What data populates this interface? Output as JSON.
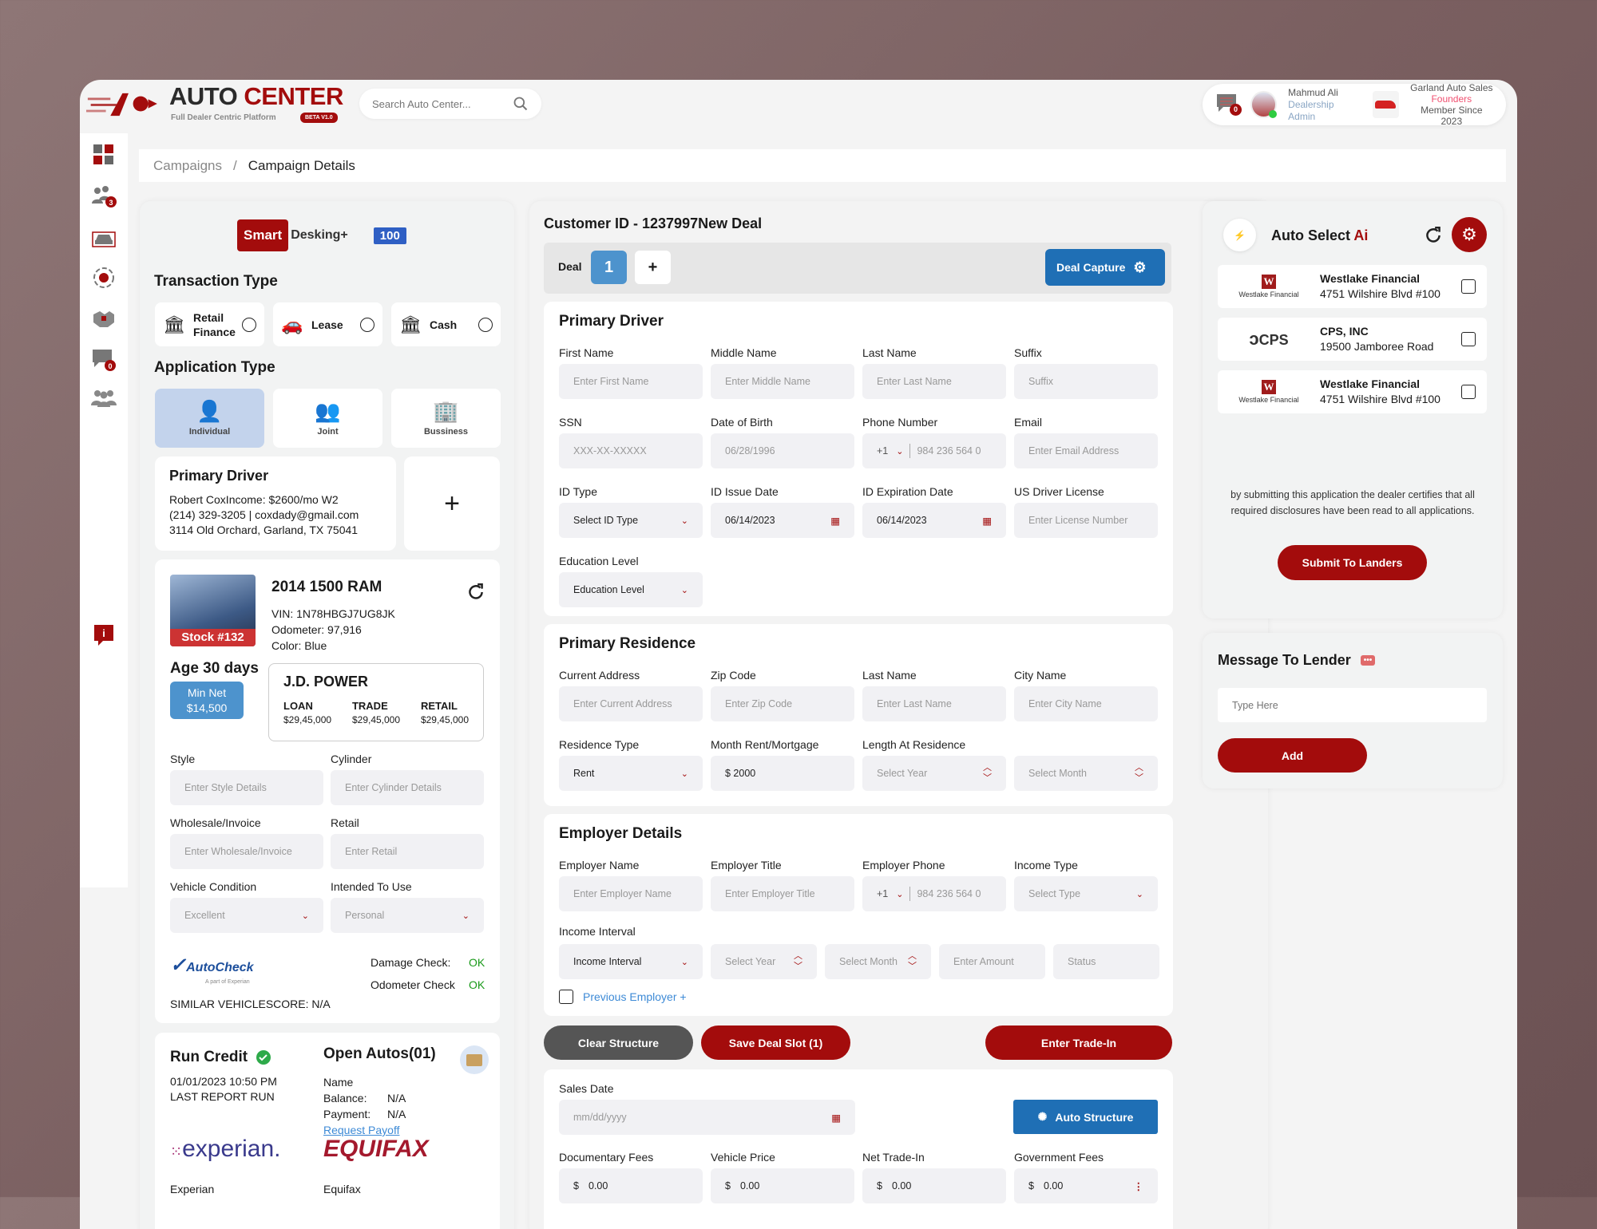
{
  "header": {
    "brand_a": "AUTO",
    "brand_b": "CENTER",
    "tagline": "Full Dealer Centric Platform",
    "beta": "BETA V1.0",
    "search_placeholder": "Search Auto Center...",
    "notifications": "0",
    "user_name": "Mahmud Ali",
    "user_role": "Dealership Admin",
    "dealer_name": "Garland Auto Sales",
    "dealer_tag": "Founders",
    "dealer_since": "Member Since 2023"
  },
  "sidebar": {
    "items": [
      {
        "icon": "dashboard-icon"
      },
      {
        "icon": "users-icon",
        "badge": "3"
      },
      {
        "icon": "car-icon"
      },
      {
        "icon": "target-icon"
      },
      {
        "icon": "handshake-icon"
      },
      {
        "icon": "messages-icon",
        "badge": "0"
      },
      {
        "icon": "team-icon"
      },
      {
        "icon": "info-icon"
      }
    ]
  },
  "breadcrumb": {
    "parent": "Campaigns",
    "sep": "/",
    "current": "Campaign Details"
  },
  "left": {
    "logo_smart": "Smart",
    "logo_desking": "Desking+",
    "logo_badge": "100",
    "transaction_title": "Transaction Type",
    "transactions": [
      {
        "label": "Retail Finance"
      },
      {
        "label": "Lease"
      },
      {
        "label": "Cash"
      }
    ],
    "application_title": "Application Type",
    "applications": [
      {
        "label": "Individual",
        "selected": true
      },
      {
        "label": "Joint"
      },
      {
        "label": "Bussiness"
      }
    ],
    "driver": {
      "title": "Primary Driver",
      "line1": "Robert CoxIncome: $2600/mo W2",
      "line2": "(214) 329-3205 | coxdady@gmail.com",
      "line3": "3114 Old Orchard, Garland, TX 75041",
      "add": "+"
    },
    "vehicle": {
      "stock": "Stock #132",
      "title": "2014 1500 RAM",
      "vin": "VIN: 1N78HBGJ7UG8JK",
      "odometer": "Odometer: 97,916",
      "color": "Color: Blue",
      "age": "Age 30 days",
      "min_net_label": "Min Net",
      "min_net": "$14,500",
      "jd": {
        "title": "J.D. POWER",
        "cols": [
          {
            "h": "LOAN",
            "v": "$29,45,000"
          },
          {
            "h": "TRADE",
            "v": "$29,45,000"
          },
          {
            "h": "RETAIL",
            "v": "$29,45,000"
          }
        ]
      },
      "fields": [
        {
          "label": "Style",
          "placeholder": "Enter Style Details"
        },
        {
          "label": "Cylinder",
          "placeholder": "Enter Cylinder Details"
        },
        {
          "label": "Wholesale/Invoice",
          "placeholder": "Enter Wholesale/Invoice"
        },
        {
          "label": "Retail",
          "placeholder": "Enter Retail"
        },
        {
          "label": "Vehicle Condition",
          "placeholder": "Excellent",
          "select": true
        },
        {
          "label": "Intended To Use",
          "placeholder": "Personal",
          "select": true
        }
      ],
      "autocheck": "AutoCheck",
      "autocheck_sub": "A part of Experian",
      "damage_label": "Damage Check:",
      "damage_value": "OK",
      "odo_label": "Odometer Check",
      "odo_value": "OK",
      "similar": "SIMILAR VEHICLESCORE: N/A"
    },
    "credit": {
      "title": "Run Credit",
      "date": "01/01/2023 10:50 PM",
      "last": "LAST REPORT RUN",
      "open_title": "Open Autos(01)",
      "name": "Name",
      "balance_label": "Balance:",
      "balance": "N/A",
      "payment_label": "Payment:",
      "payment": "N/A",
      "payoff": "Request Payoff",
      "experian_logo": "experian.",
      "experian": "Experian",
      "equifax_logo": "EQUIFAX",
      "equifax": "Equifax"
    }
  },
  "main": {
    "title": "Customer ID - 1237997New Deal",
    "deal_label": "Deal",
    "deal_num": "1",
    "deal_add": "+",
    "deal_capture": "Deal Capture",
    "driver": {
      "title": "Primary Driver",
      "fields": [
        {
          "label": "First Name",
          "placeholder": "Enter First Name"
        },
        {
          "label": "Middle Name",
          "placeholder": "Enter Middle Name"
        },
        {
          "label": "Last Name",
          "placeholder": "Enter Last Name"
        },
        {
          "label": "Suffix",
          "placeholder": "Suffix"
        },
        {
          "label": "SSN",
          "placeholder": "XXX-XX-XXXXX"
        },
        {
          "label": "Date of Birth",
          "placeholder": "06/28/1996"
        },
        {
          "label": "Phone Number",
          "placeholder": "984 236 564 0",
          "phone": "+1"
        },
        {
          "label": "Email",
          "placeholder": "Enter Email Address"
        },
        {
          "label": "ID Type",
          "value": "Select ID Type",
          "select": true
        },
        {
          "label": "ID Issue Date",
          "value": "06/14/2023",
          "date": true
        },
        {
          "label": "ID Expiration Date",
          "value": "06/14/2023",
          "date": true
        },
        {
          "label": "US Driver License",
          "value": "Enter License Number"
        },
        {
          "label": "Education Level",
          "value": "Education Level",
          "select": true
        }
      ]
    },
    "residence": {
      "title": "Primary Residence",
      "fields": [
        {
          "label": "Current Address",
          "placeholder": "Enter Current Address"
        },
        {
          "label": "Zip Code",
          "placeholder": "Enter Zip Code"
        },
        {
          "label": "Last Name",
          "placeholder": "Enter Last Name"
        },
        {
          "label": "City Name",
          "placeholder": "Enter City Name"
        },
        {
          "label": "Residence Type",
          "value": "Rent",
          "select": true
        },
        {
          "label": "Month Rent/Mortgage",
          "value": "$ 2000"
        },
        {
          "label": "Length At Residence",
          "placeholder": "Select Year",
          "spin": true
        },
        {
          "label": "",
          "placeholder": "Select Month",
          "spin": true
        }
      ]
    },
    "employer": {
      "title": "Employer Details",
      "fields": [
        {
          "label": "Employer Name",
          "placeholder": "Enter Employer Name"
        },
        {
          "label": "Employer Title",
          "placeholder": "Enter Employer Title"
        },
        {
          "label": "Employer Phone",
          "placeholder": "984 236 564 0",
          "phone": "+1"
        },
        {
          "label": "Income Type",
          "value": "Select Type",
          "select": true
        }
      ],
      "interval_label": "Income Interval",
      "interval": [
        {
          "value": "Income Interval",
          "select": true
        },
        {
          "placeholder": "Select Year",
          "spin": true
        },
        {
          "placeholder": "Select Month",
          "spin": true
        },
        {
          "placeholder": "Enter Amount"
        },
        {
          "placeholder": "Status"
        }
      ],
      "previous": "Previous Employer +"
    },
    "actions": {
      "clear": "Clear Structure",
      "save": "Save Deal Slot (1)",
      "trade": "Enter Trade-In"
    },
    "sales": {
      "date_label": "Sales Date",
      "date_placeholder": "mm/dd/yyyy",
      "auto_structure": "Auto Structure",
      "fees": [
        {
          "label": "Documentary Fees",
          "value": "0.00"
        },
        {
          "label": "Vehicle Price",
          "value": "0.00"
        },
        {
          "label": "Net Trade-In",
          "value": "0.00"
        },
        {
          "label": "Government Fees",
          "value": "0.00"
        }
      ],
      "currency": "$"
    }
  },
  "right": {
    "title_a": "Auto Select",
    "title_b": "Ai",
    "lenders": [
      {
        "logo": "Westlake Financial",
        "name": "Westlake Financial",
        "address": "4751 Wilshire Blvd #100"
      },
      {
        "logo": "CPS",
        "name": "CPS, INC",
        "address": "19500 Jamboree Road"
      },
      {
        "logo": "Westlake Financial",
        "name": "Westlake Financial",
        "address": "4751 Wilshire Blvd #100"
      }
    ],
    "disclaimer": "by submitting this application the dealer certifies that all required disclosures have been read to all applications.",
    "submit": "Submit To Landers",
    "message_title": "Message To Lender",
    "message_placeholder": "Type Here",
    "add": "Add"
  },
  "colors": {
    "brand_red": "#a30c0c",
    "accent_blue": "#1f6fb5",
    "ok_green": "#1a9a1a",
    "selected_bg": "#c3d3ec"
  }
}
